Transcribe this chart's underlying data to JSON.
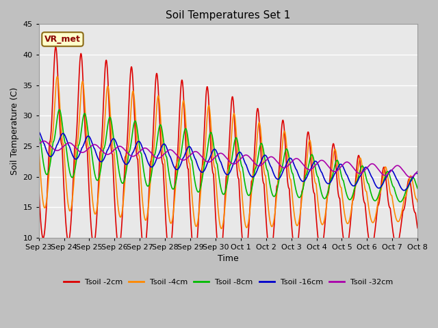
{
  "title": "Soil Temperatures Set 1",
  "xlabel": "Time",
  "ylabel": "Soil Temperature (C)",
  "ylim": [
    10,
    45
  ],
  "yticks": [
    10,
    15,
    20,
    25,
    30,
    35,
    40,
    45
  ],
  "annotation": "VR_met",
  "bg_color": "#c8c8c8",
  "plot_bg_color": "#e8e8e8",
  "series": [
    {
      "label": "Tsoil -2cm",
      "color": "#dd0000",
      "lw": 1.2
    },
    {
      "label": "Tsoil -4cm",
      "color": "#ff8800",
      "lw": 1.2
    },
    {
      "label": "Tsoil -8cm",
      "color": "#00bb00",
      "lw": 1.2
    },
    {
      "label": "Tsoil -16cm",
      "color": "#0000cc",
      "lw": 1.2
    },
    {
      "label": "Tsoil -32cm",
      "color": "#aa00aa",
      "lw": 1.2
    }
  ],
  "xtick_labels": [
    "Sep 23",
    "Sep 24",
    "Sep 25",
    "Sep 26",
    "Sep 27",
    "Sep 28",
    "Sep 29",
    "Sep 30",
    "Oct 1",
    "Oct 2",
    "Oct 3",
    "Oct 4",
    "Oct 5",
    "Oct 6",
    "Oct 7",
    "Oct 8"
  ],
  "xtick_positions": [
    0,
    1,
    2,
    3,
    4,
    5,
    6,
    7,
    8,
    9,
    10,
    11,
    12,
    13,
    14,
    15
  ]
}
